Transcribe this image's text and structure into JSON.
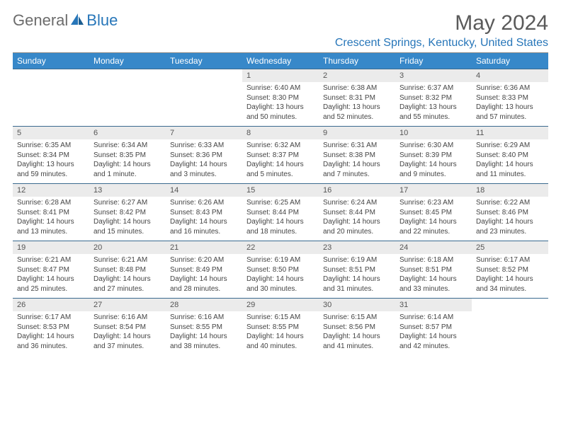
{
  "logo": {
    "text1": "General",
    "text2": "Blue",
    "color_gray": "#6c6c6c",
    "color_blue": "#2776b9"
  },
  "title": "May 2024",
  "location": "Crescent Springs, Kentucky, United States",
  "colors": {
    "header_bg": "#3788c9",
    "header_text": "#ffffff",
    "daynum_bg": "#ebebeb",
    "border": "#3a6a8f"
  },
  "day_names": [
    "Sunday",
    "Monday",
    "Tuesday",
    "Wednesday",
    "Thursday",
    "Friday",
    "Saturday"
  ],
  "weeks": [
    {
      "nums": [
        "",
        "",
        "",
        "1",
        "2",
        "3",
        "4"
      ],
      "details": [
        [],
        [],
        [],
        [
          "Sunrise: 6:40 AM",
          "Sunset: 8:30 PM",
          "Daylight: 13 hours",
          "and 50 minutes."
        ],
        [
          "Sunrise: 6:38 AM",
          "Sunset: 8:31 PM",
          "Daylight: 13 hours",
          "and 52 minutes."
        ],
        [
          "Sunrise: 6:37 AM",
          "Sunset: 8:32 PM",
          "Daylight: 13 hours",
          "and 55 minutes."
        ],
        [
          "Sunrise: 6:36 AM",
          "Sunset: 8:33 PM",
          "Daylight: 13 hours",
          "and 57 minutes."
        ]
      ]
    },
    {
      "nums": [
        "5",
        "6",
        "7",
        "8",
        "9",
        "10",
        "11"
      ],
      "details": [
        [
          "Sunrise: 6:35 AM",
          "Sunset: 8:34 PM",
          "Daylight: 13 hours",
          "and 59 minutes."
        ],
        [
          "Sunrise: 6:34 AM",
          "Sunset: 8:35 PM",
          "Daylight: 14 hours",
          "and 1 minute."
        ],
        [
          "Sunrise: 6:33 AM",
          "Sunset: 8:36 PM",
          "Daylight: 14 hours",
          "and 3 minutes."
        ],
        [
          "Sunrise: 6:32 AM",
          "Sunset: 8:37 PM",
          "Daylight: 14 hours",
          "and 5 minutes."
        ],
        [
          "Sunrise: 6:31 AM",
          "Sunset: 8:38 PM",
          "Daylight: 14 hours",
          "and 7 minutes."
        ],
        [
          "Sunrise: 6:30 AM",
          "Sunset: 8:39 PM",
          "Daylight: 14 hours",
          "and 9 minutes."
        ],
        [
          "Sunrise: 6:29 AM",
          "Sunset: 8:40 PM",
          "Daylight: 14 hours",
          "and 11 minutes."
        ]
      ]
    },
    {
      "nums": [
        "12",
        "13",
        "14",
        "15",
        "16",
        "17",
        "18"
      ],
      "details": [
        [
          "Sunrise: 6:28 AM",
          "Sunset: 8:41 PM",
          "Daylight: 14 hours",
          "and 13 minutes."
        ],
        [
          "Sunrise: 6:27 AM",
          "Sunset: 8:42 PM",
          "Daylight: 14 hours",
          "and 15 minutes."
        ],
        [
          "Sunrise: 6:26 AM",
          "Sunset: 8:43 PM",
          "Daylight: 14 hours",
          "and 16 minutes."
        ],
        [
          "Sunrise: 6:25 AM",
          "Sunset: 8:44 PM",
          "Daylight: 14 hours",
          "and 18 minutes."
        ],
        [
          "Sunrise: 6:24 AM",
          "Sunset: 8:44 PM",
          "Daylight: 14 hours",
          "and 20 minutes."
        ],
        [
          "Sunrise: 6:23 AM",
          "Sunset: 8:45 PM",
          "Daylight: 14 hours",
          "and 22 minutes."
        ],
        [
          "Sunrise: 6:22 AM",
          "Sunset: 8:46 PM",
          "Daylight: 14 hours",
          "and 23 minutes."
        ]
      ]
    },
    {
      "nums": [
        "19",
        "20",
        "21",
        "22",
        "23",
        "24",
        "25"
      ],
      "details": [
        [
          "Sunrise: 6:21 AM",
          "Sunset: 8:47 PM",
          "Daylight: 14 hours",
          "and 25 minutes."
        ],
        [
          "Sunrise: 6:21 AM",
          "Sunset: 8:48 PM",
          "Daylight: 14 hours",
          "and 27 minutes."
        ],
        [
          "Sunrise: 6:20 AM",
          "Sunset: 8:49 PM",
          "Daylight: 14 hours",
          "and 28 minutes."
        ],
        [
          "Sunrise: 6:19 AM",
          "Sunset: 8:50 PM",
          "Daylight: 14 hours",
          "and 30 minutes."
        ],
        [
          "Sunrise: 6:19 AM",
          "Sunset: 8:51 PM",
          "Daylight: 14 hours",
          "and 31 minutes."
        ],
        [
          "Sunrise: 6:18 AM",
          "Sunset: 8:51 PM",
          "Daylight: 14 hours",
          "and 33 minutes."
        ],
        [
          "Sunrise: 6:17 AM",
          "Sunset: 8:52 PM",
          "Daylight: 14 hours",
          "and 34 minutes."
        ]
      ]
    },
    {
      "nums": [
        "26",
        "27",
        "28",
        "29",
        "30",
        "31",
        ""
      ],
      "details": [
        [
          "Sunrise: 6:17 AM",
          "Sunset: 8:53 PM",
          "Daylight: 14 hours",
          "and 36 minutes."
        ],
        [
          "Sunrise: 6:16 AM",
          "Sunset: 8:54 PM",
          "Daylight: 14 hours",
          "and 37 minutes."
        ],
        [
          "Sunrise: 6:16 AM",
          "Sunset: 8:55 PM",
          "Daylight: 14 hours",
          "and 38 minutes."
        ],
        [
          "Sunrise: 6:15 AM",
          "Sunset: 8:55 PM",
          "Daylight: 14 hours",
          "and 40 minutes."
        ],
        [
          "Sunrise: 6:15 AM",
          "Sunset: 8:56 PM",
          "Daylight: 14 hours",
          "and 41 minutes."
        ],
        [
          "Sunrise: 6:14 AM",
          "Sunset: 8:57 PM",
          "Daylight: 14 hours",
          "and 42 minutes."
        ],
        []
      ]
    }
  ]
}
